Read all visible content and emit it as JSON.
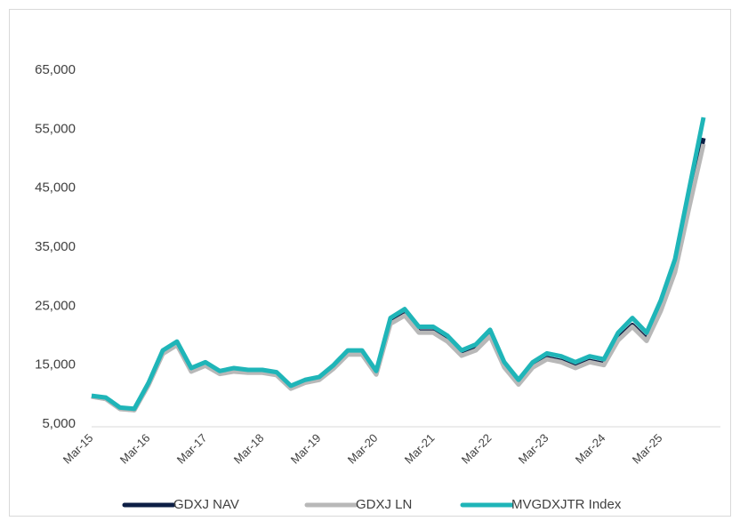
{
  "chart_data": {
    "type": "line",
    "categories": [
      "Mar-15",
      null,
      null,
      null,
      "Mar-16",
      null,
      null,
      null,
      "Mar-17",
      null,
      null,
      null,
      "Mar-18",
      null,
      null,
      null,
      "Mar-19",
      null,
      null,
      null,
      "Mar-20",
      null,
      null,
      null,
      "Mar-21",
      null,
      null,
      null,
      "Mar-22",
      null,
      null,
      null,
      "Mar-23",
      null,
      null,
      null,
      "Mar-24",
      null,
      null,
      null,
      "Mar-25",
      null,
      null,
      null
    ],
    "series": [
      {
        "name": "GDXJ NAV",
        "color": "#0d1f45",
        "values": [
          9700,
          9300,
          7600,
          7400,
          11700,
          17000,
          18500,
          14000,
          15000,
          13600,
          14000,
          13800,
          13800,
          13400,
          11100,
          12100,
          12600,
          14500,
          16900,
          16900,
          13500,
          22200,
          23600,
          20700,
          20700,
          19200,
          16800,
          17700,
          20100,
          14800,
          11900,
          14800,
          16200,
          15700,
          14700,
          15700,
          15200,
          19500,
          21800,
          19400,
          24600,
          31200,
          42500,
          53500
        ]
      },
      {
        "name": "GDXJ LN",
        "color": "#b8b8b8",
        "values": [
          9650,
          9250,
          7550,
          7350,
          11600,
          16900,
          18400,
          13900,
          14900,
          13500,
          13900,
          13700,
          13700,
          13300,
          11000,
          12000,
          12500,
          14400,
          16800,
          16800,
          13400,
          22000,
          23400,
          20500,
          20500,
          19000,
          16600,
          17500,
          19900,
          14600,
          11700,
          14600,
          16000,
          15500,
          14500,
          15500,
          15000,
          19200,
          21500,
          19100,
          24200,
          30800,
          41800,
          52500
        ]
      },
      {
        "name": "MVGDXJTR Index",
        "color": "#1fb5b8",
        "values": [
          9800,
          9500,
          7800,
          7600,
          12000,
          17500,
          19000,
          14500,
          15500,
          14000,
          14500,
          14200,
          14200,
          13800,
          11500,
          12500,
          13000,
          15000,
          17500,
          17500,
          14000,
          23000,
          24500,
          21500,
          21500,
          20000,
          17500,
          18500,
          21000,
          15500,
          12500,
          15500,
          17000,
          16500,
          15500,
          16500,
          16000,
          20500,
          23000,
          20500,
          26000,
          33000,
          45000,
          57000
        ]
      }
    ],
    "ylim": [
      5000,
      65000
    ],
    "yticks": [
      {
        "value": 5000,
        "label": "5,000"
      },
      {
        "value": 15000,
        "label": "15,000"
      },
      {
        "value": 25000,
        "label": "25,000"
      },
      {
        "value": 35000,
        "label": "35,000"
      },
      {
        "value": 45000,
        "label": "45,000"
      },
      {
        "value": 55000,
        "label": "55,000"
      },
      {
        "value": 65000,
        "label": "65,000"
      }
    ],
    "grid": false,
    "legend": "bottom"
  }
}
